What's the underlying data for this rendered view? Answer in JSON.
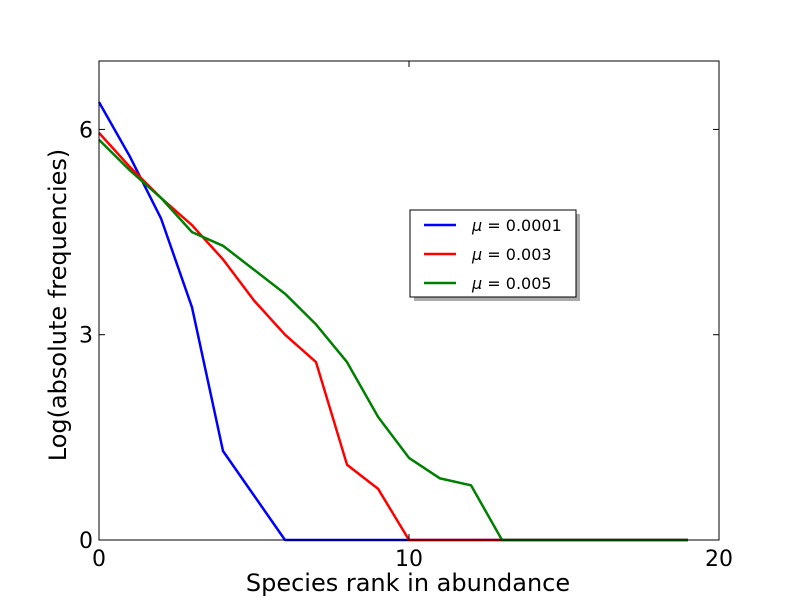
{
  "chart_data": {
    "type": "line",
    "title": "",
    "xlabel": "Species rank in abundance",
    "ylabel": "Log(absolute frequencies)",
    "xlim": [
      0,
      20
    ],
    "ylim": [
      0,
      7
    ],
    "xticks": [
      0,
      10,
      20
    ],
    "yticks": [
      0,
      3,
      6
    ],
    "grid": false,
    "legend_position": "center-right",
    "series": [
      {
        "name": "μ = 0.0001",
        "legend_symbol": "μ",
        "legend_value": " = 0.0001",
        "color": "#0000ff",
        "x": [
          0,
          1,
          2,
          3,
          4,
          5,
          6,
          7,
          8,
          9,
          10,
          11,
          12,
          13,
          14,
          15,
          16,
          17,
          18,
          19
        ],
        "y": [
          6.4,
          5.6,
          4.7,
          3.4,
          1.3,
          0.65,
          0.0,
          0.0,
          0.0,
          0.0,
          0.0,
          0.0,
          0.0,
          0.0,
          0.0,
          0.0,
          0.0,
          0.0,
          0.0,
          0.0
        ]
      },
      {
        "name": "μ = 0.003",
        "legend_symbol": "μ",
        "legend_value": " = 0.003",
        "color": "#ff0000",
        "x": [
          0,
          1,
          2,
          3,
          4,
          5,
          6,
          7,
          8,
          9,
          10,
          11,
          12,
          13,
          14,
          15,
          16,
          17,
          18,
          19
        ],
        "y": [
          5.95,
          5.45,
          5.0,
          4.6,
          4.1,
          3.5,
          3.0,
          2.6,
          1.1,
          0.75,
          0.0,
          0.0,
          0.0,
          0.0,
          0.0,
          0.0,
          0.0,
          0.0,
          0.0,
          0.0
        ]
      },
      {
        "name": "μ = 0.005",
        "legend_symbol": "μ",
        "legend_value": " = 0.005",
        "color": "#008000",
        "x": [
          0,
          1,
          2,
          3,
          4,
          5,
          6,
          7,
          8,
          9,
          10,
          11,
          12,
          13,
          14,
          15,
          16,
          17,
          18,
          19
        ],
        "y": [
          5.85,
          5.4,
          5.0,
          4.5,
          4.3,
          3.95,
          3.6,
          3.15,
          2.6,
          1.8,
          1.2,
          0.9,
          0.8,
          0.0,
          0.0,
          0.0,
          0.0,
          0.0,
          0.0,
          0.0
        ]
      }
    ]
  }
}
